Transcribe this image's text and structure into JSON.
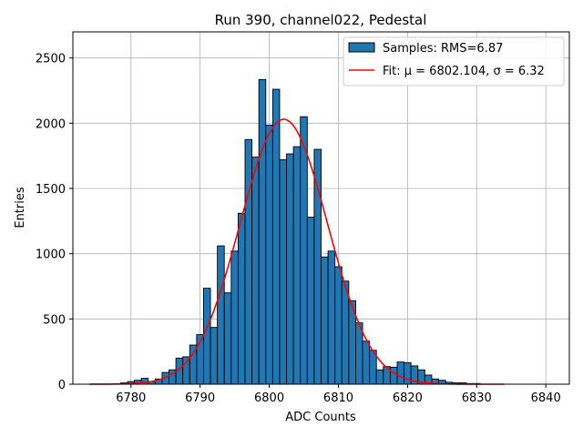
{
  "chart_data": {
    "type": "bar",
    "title": "Run 390, channel022, Pedestal",
    "xlabel": "ADC Counts",
    "ylabel": "Entries",
    "xlim": [
      6771.6,
      6843.4
    ],
    "ylim": [
      0,
      2700
    ],
    "xticks": [
      6780,
      6790,
      6800,
      6810,
      6820,
      6830,
      6840
    ],
    "yticks": [
      0,
      500,
      1000,
      1500,
      2000,
      2500
    ],
    "grid": true,
    "legend_position": "top-right",
    "bar_color": "#1f77b4",
    "fit_color": "#ff0000",
    "histogram": {
      "name": "Samples: RMS=6.87",
      "bin_width": 1,
      "x": [
        6779,
        6780,
        6781,
        6782,
        6783,
        6784,
        6785,
        6786,
        6787,
        6788,
        6789,
        6790,
        6791,
        6792,
        6793,
        6794,
        6795,
        6796,
        6797,
        6798,
        6799,
        6800,
        6801,
        6802,
        6803,
        6804,
        6805,
        6806,
        6807,
        6808,
        6809,
        6810,
        6811,
        6812,
        6813,
        6814,
        6815,
        6816,
        6817,
        6818,
        6819,
        6820,
        6821,
        6822,
        6823,
        6824,
        6825,
        6826,
        6827,
        6828,
        6829,
        6830
      ],
      "values": [
        10,
        20,
        30,
        45,
        20,
        40,
        90,
        110,
        200,
        210,
        300,
        380,
        735,
        435,
        1060,
        700,
        1020,
        1310,
        1875,
        1740,
        2335,
        1985,
        2260,
        1720,
        1765,
        1820,
        2050,
        1280,
        1800,
        975,
        1020,
        900,
        790,
        640,
        470,
        330,
        260,
        110,
        135,
        130,
        170,
        165,
        140,
        110,
        70,
        40,
        30,
        15,
        10,
        10,
        5,
        5
      ]
    },
    "fit": {
      "name": "Fit: μ = 6802.104, σ = 6.32",
      "mu": 6802.104,
      "sigma": 6.32,
      "amplitude": 2030,
      "x_range": [
        6774,
        6834
      ]
    }
  }
}
